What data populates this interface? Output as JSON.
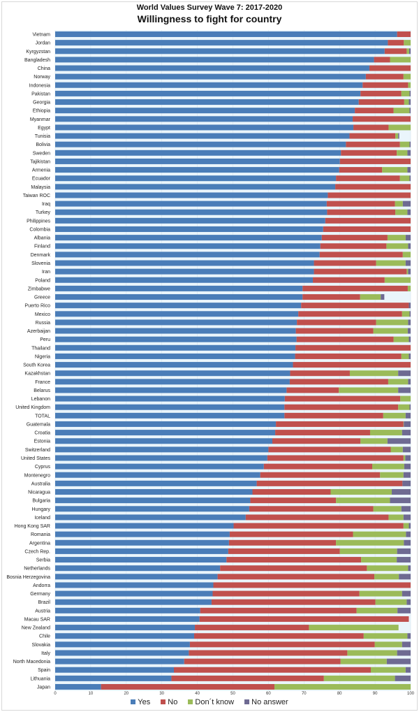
{
  "chart_data": {
    "type": "bar",
    "orientation": "horizontal",
    "stacked": true,
    "title": "World Values Survey Wave 7: 2017-2020",
    "subtitle": "Willingness to fight for country",
    "xlabel": "",
    "ylabel": "",
    "xlim": [
      0,
      100
    ],
    "xticks": [
      "0",
      "10",
      "20",
      "30",
      "40",
      "50",
      "60",
      "70",
      "80",
      "90",
      "100"
    ],
    "legend_position": "bottom",
    "colors": {
      "Yes": "#4a7db8",
      "No": "#c0504d",
      "Don´t know": "#9bbb59",
      "No answer": "#6e6a92"
    },
    "series_names": [
      "Yes",
      "No",
      "Don´t know",
      "No answer"
    ],
    "categories": [
      "Vietnam",
      "Jordan",
      "Kyrgyzstan",
      "Bangladesh",
      "China",
      "Norway",
      "Indonesia",
      "Pakistan",
      "Georgia",
      "Ethiopia",
      "Myanmar",
      "Egypt",
      "Tunisia",
      "Bolivia",
      "Sweden",
      "Tajikistan",
      "Armenia",
      "Ecuador",
      "Malaysia",
      "Taiwan ROC",
      "Iraq",
      "Turkey",
      "Philippines",
      "Colombia",
      "Albania",
      "Finland",
      "Denmark",
      "Slovenia",
      "Iran",
      "Poland",
      "Zimbabwe",
      "Greece",
      "Puerto Rico",
      "Mexico",
      "Russia",
      "Azerbaijan",
      "Peru",
      "Thailand",
      "Nigeria",
      "South Korea",
      "Kazakhstan",
      "France",
      "Belarus",
      "Lebanon",
      "United Kingdom",
      "TOTAL",
      "Guatemala",
      "Croatia",
      "Estonia",
      "Switzerland",
      "United States",
      "Cyprus",
      "Montenegro",
      "Australia",
      "Nicaragua",
      "Bulgaria",
      "Hungary",
      "Iceland",
      "Hong Kong SAR",
      "Romania",
      "Argentina",
      "Czech Rep.",
      "Serbia",
      "Netherlands",
      "Bosnia Herzegovina",
      "Andorra",
      "Germany",
      "Brazil",
      "Austria",
      "Macau SAR",
      "New Zealand",
      "Chile",
      "Slovakia",
      "Italy",
      "North Macedonia",
      "Spain",
      "Lithuania",
      "Japan"
    ],
    "values": [
      [
        96.2,
        3.8,
        0,
        0
      ],
      [
        93.6,
        4.5,
        1.9,
        0
      ],
      [
        92.7,
        6.2,
        0.7,
        0.4
      ],
      [
        89.7,
        4.5,
        5.8,
        0
      ],
      [
        88.4,
        11.6,
        0,
        0
      ],
      [
        87.4,
        10.6,
        2.0,
        0
      ],
      [
        86.5,
        12.8,
        0.7,
        0
      ],
      [
        85.9,
        11.5,
        2.3,
        0.3
      ],
      [
        85.4,
        12.8,
        1.3,
        0.5
      ],
      [
        84.3,
        10.9,
        4.5,
        0.3
      ],
      [
        83.7,
        16.3,
        0,
        0
      ],
      [
        83.9,
        9.9,
        6.2,
        0
      ],
      [
        82.8,
        12.9,
        0.8,
        0.3
      ],
      [
        81.8,
        15.2,
        2.7,
        0.3
      ],
      [
        80.4,
        15.7,
        3.0,
        0.9
      ],
      [
        80.1,
        19.9,
        0,
        0
      ],
      [
        79.9,
        12.1,
        7.1,
        0.9
      ],
      [
        79.0,
        18.0,
        2.7,
        0.3
      ],
      [
        78.8,
        21.2,
        0,
        0
      ],
      [
        76.7,
        23.3,
        0,
        0
      ],
      [
        76.4,
        19.2,
        2.2,
        2.2
      ],
      [
        76.5,
        19.2,
        3.4,
        0.9
      ],
      [
        76.0,
        24.0,
        0,
        0
      ],
      [
        75.4,
        24.6,
        0,
        0
      ],
      [
        75.0,
        18.5,
        5.1,
        1.4
      ],
      [
        74.6,
        18.6,
        6.1,
        0.7
      ],
      [
        74.4,
        23.4,
        2.2,
        0
      ],
      [
        72.8,
        17.5,
        8.3,
        1.4
      ],
      [
        72.8,
        26.1,
        0.4,
        0.7
      ],
      [
        72.5,
        20.2,
        7.3,
        0
      ],
      [
        69.6,
        29.6,
        0.8,
        0
      ],
      [
        69.6,
        16.2,
        5.8,
        1.0
      ],
      [
        69.2,
        30.3,
        0,
        0.5
      ],
      [
        68.4,
        29.2,
        2.1,
        0.3
      ],
      [
        68.0,
        22.3,
        9.0,
        0.7
      ],
      [
        67.7,
        21.8,
        9.7,
        0.8
      ],
      [
        67.9,
        27.3,
        4.3,
        0.5
      ],
      [
        67.6,
        32.4,
        0,
        0
      ],
      [
        67.5,
        29.9,
        2.1,
        0.5
      ],
      [
        66.9,
        33.1,
        0,
        0
      ],
      [
        66.1,
        16.8,
        13.6,
        3.5
      ],
      [
        66.0,
        27.7,
        5.6,
        0.7
      ],
      [
        65.1,
        14.7,
        16.7,
        3.5
      ],
      [
        64.6,
        32.5,
        2.9,
        0
      ],
      [
        64.5,
        32.0,
        3.2,
        0.3
      ],
      [
        64.5,
        27.8,
        6.3,
        1.4
      ],
      [
        62.1,
        35.9,
        0.1,
        1.9
      ],
      [
        61.9,
        26.7,
        9.0,
        2.4
      ],
      [
        61.1,
        24.8,
        7.6,
        6.5
      ],
      [
        60.0,
        34.4,
        3.4,
        2.2
      ],
      [
        59.7,
        38.3,
        0.5,
        1.5
      ],
      [
        58.7,
        30.5,
        9.0,
        1.8
      ],
      [
        57.7,
        33.7,
        6.6,
        2.0
      ],
      [
        56.7,
        41.0,
        0,
        2.3
      ],
      [
        55.5,
        22.0,
        17.2,
        5.3
      ],
      [
        54.9,
        24.1,
        15.2,
        5.8
      ],
      [
        54.6,
        34.9,
        7.9,
        2.6
      ],
      [
        53.6,
        40.2,
        4.2,
        2.0
      ],
      [
        50.2,
        47.8,
        1.5,
        0.5
      ],
      [
        49.1,
        34.7,
        14.9,
        1.3
      ],
      [
        48.9,
        30.1,
        19.1,
        1.9
      ],
      [
        48.7,
        31.4,
        16.1,
        3.8
      ],
      [
        48.2,
        37.9,
        10.0,
        3.9
      ],
      [
        46.4,
        41.3,
        11.6,
        0.7
      ],
      [
        45.7,
        44.1,
        6.9,
        3.3
      ],
      [
        44.5,
        55.5,
        0,
        0
      ],
      [
        44.3,
        41.3,
        12.0,
        2.4
      ],
      [
        44.0,
        46.1,
        8.8,
        1.1
      ],
      [
        40.8,
        44.0,
        11.5,
        3.7
      ],
      [
        40.6,
        58.9,
        0,
        0
      ],
      [
        39.3,
        32.1,
        25.2,
        0
      ],
      [
        39.1,
        47.7,
        12.3,
        0.9
      ],
      [
        37.9,
        52.0,
        7.7,
        2.4
      ],
      [
        37.6,
        44.6,
        14.0,
        3.8
      ],
      [
        36.3,
        44.0,
        13.0,
        6.7
      ],
      [
        33.4,
        55.4,
        9.8,
        1.4
      ],
      [
        32.7,
        42.9,
        20.0,
        4.4
      ],
      [
        12.9,
        48.8,
        38.3,
        0
      ]
    ]
  }
}
